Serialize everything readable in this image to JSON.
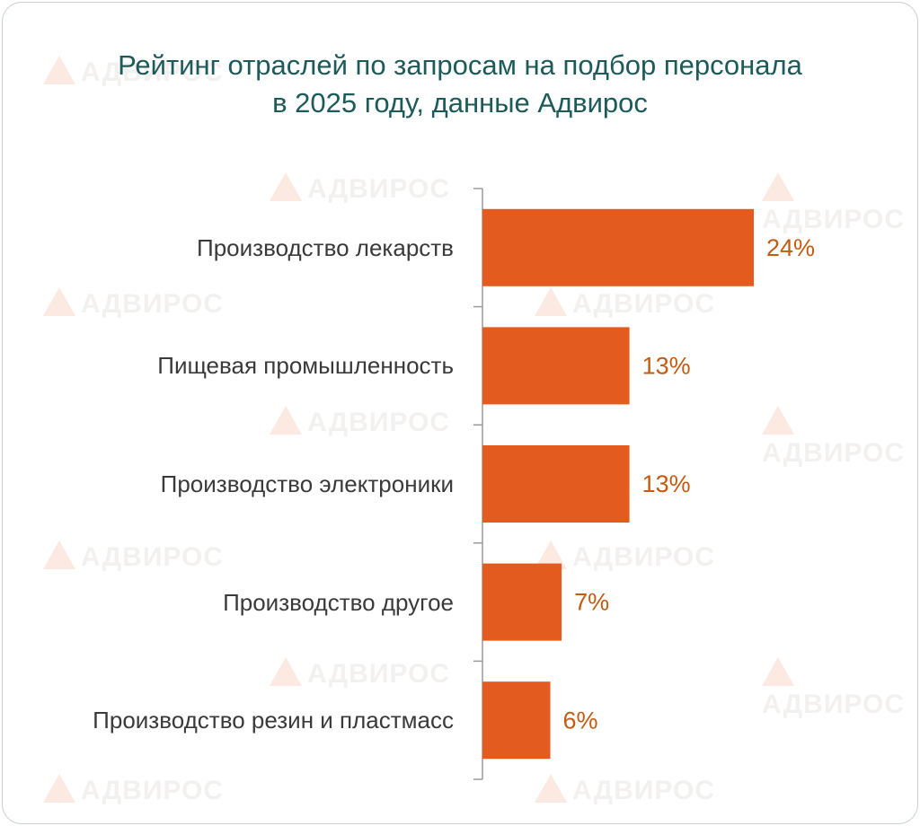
{
  "chart_data": {
    "type": "bar",
    "orientation": "horizontal",
    "title": "Рейтинг отраслей по запросам на подбор персонала в 2025 году, данные Адвирос",
    "categories": [
      "Производство лекарств",
      "Пищевая промышленность",
      "Производство электроники",
      "Производство другое",
      "Производство резин и пластмасс"
    ],
    "values": [
      24,
      13,
      13,
      7,
      6
    ],
    "value_labels": [
      "24%",
      "13%",
      "13%",
      "7%",
      "6%"
    ],
    "color": "#e35b1f",
    "watermark": "АДВИРОС"
  }
}
